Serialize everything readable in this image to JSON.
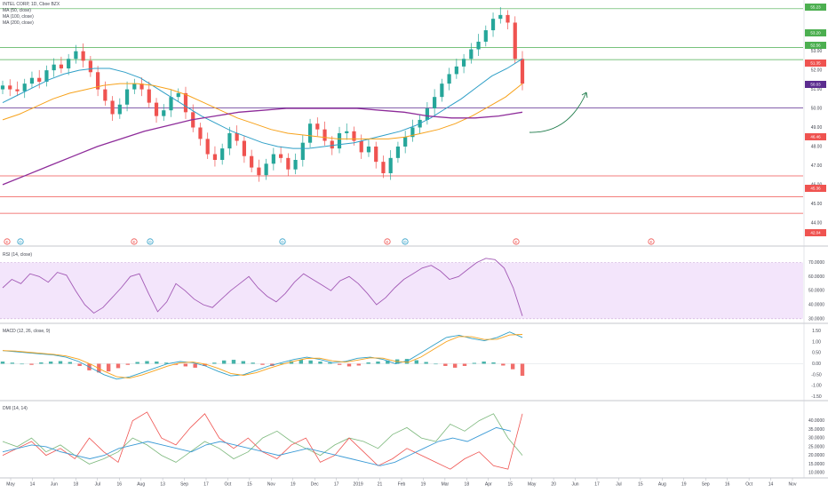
{
  "colors": {
    "up": "#26a69a",
    "down": "#ef5350",
    "ma50": "#2f9fc7",
    "ma100": "#f7a21b",
    "ma200": "#8e2c9a",
    "green_level": "#4caf50",
    "purple_level": "#5b2c8f",
    "red_level": "#ef5350",
    "rsi": "#a259b5",
    "rsi_band": "#f3e5fb",
    "macd": "#2f9fc7",
    "signal": "#f7a21b",
    "dmi_plus": "#7cb87c",
    "dmi_minus": "#ef5350",
    "adx": "#3c9bd6",
    "arrow": "#1e7b4a"
  },
  "legend": {
    "title": "INTEL CORP, 1D, Cboe BZX",
    "ma50": "MA (50, close)",
    "ma100": "MA (100, close)",
    "ma200": "MA (200, close)"
  },
  "chart_data": [
    {
      "type": "candlestick",
      "title": "INTEL CORP, 1D, Cboe BZX",
      "y_ticks": [
        54.0,
        53.0,
        52.0,
        51.0,
        50.0,
        49.0,
        48.0,
        47.0,
        46.0,
        45.0,
        44.0
      ],
      "price_badges": [
        {
          "value": "55.23",
          "color": "#4caf50"
        },
        {
          "value": "53.20",
          "color": "#4caf50"
        },
        {
          "value": "52.56",
          "color": "#4caf50"
        },
        {
          "value": "51.35",
          "color": "#ef5350"
        },
        {
          "value": "50.03",
          "color": "#5b2c8f"
        },
        {
          "value": "46.46",
          "color": "#ef5350"
        },
        {
          "value": "45.36",
          "color": "#ef5350"
        },
        {
          "value": "42.04",
          "color": "#ef5350"
        }
      ],
      "horizontal_levels": [
        {
          "y": 55.23,
          "color": "#4caf50"
        },
        {
          "y": 53.2,
          "color": "#4caf50"
        },
        {
          "y": 52.56,
          "color": "#4caf50"
        },
        {
          "y": 50.03,
          "color": "#5b2c8f"
        },
        {
          "y": 46.46,
          "color": "#ef5350"
        },
        {
          "y": 45.36,
          "color": "#ef5350"
        },
        {
          "y": 44.5,
          "color": "#ef5350"
        }
      ],
      "close_series_sampled": [
        51.2,
        51.0,
        50.9,
        51.3,
        51.6,
        51.4,
        52.0,
        52.3,
        52.1,
        52.6,
        53.0,
        52.5,
        51.9,
        51.0,
        50.4,
        49.7,
        50.2,
        51.0,
        51.3,
        51.0,
        50.3,
        49.6,
        49.9,
        50.6,
        50.8,
        49.8,
        49.0,
        48.4,
        47.6,
        47.3,
        47.9,
        48.7,
        48.3,
        47.5,
        46.9,
        46.5,
        47.1,
        47.6,
        47.4,
        46.8,
        47.3,
        48.2,
        49.2,
        48.9,
        48.3,
        47.9,
        48.7,
        48.8,
        48.3,
        47.7,
        48.0,
        47.2,
        46.6,
        47.4,
        48.0,
        48.5,
        49.0,
        49.4,
        50.0,
        50.6,
        51.3,
        51.8,
        52.2,
        52.6,
        53.1,
        53.5,
        54.1,
        54.7,
        54.9,
        54.5,
        52.6,
        51.3
      ],
      "ma50_sampled": [
        50.3,
        50.7,
        51.1,
        51.5,
        51.8,
        52.0,
        52.1,
        52.1,
        51.9,
        51.6,
        51.1,
        50.6,
        50.1,
        49.6,
        49.2,
        48.8,
        48.5,
        48.2,
        48.0,
        47.9,
        47.9,
        48.0,
        48.1,
        48.2,
        48.4,
        48.6,
        48.8,
        49.1,
        49.5,
        50.0,
        50.5,
        51.1,
        51.7,
        52.1,
        52.6
      ],
      "ma100_sampled": [
        49.4,
        49.7,
        50.1,
        50.5,
        50.8,
        51.0,
        51.2,
        51.3,
        51.3,
        51.2,
        51.0,
        50.7,
        50.3,
        49.9,
        49.5,
        49.2,
        48.9,
        48.7,
        48.6,
        48.5,
        48.4,
        48.4,
        48.4,
        48.4,
        48.5,
        48.7,
        48.9,
        49.2,
        49.6,
        50.1,
        50.6,
        51.3
      ],
      "ma200_sampled": [
        46.0,
        46.5,
        47.0,
        47.5,
        48.0,
        48.4,
        48.8,
        49.1,
        49.4,
        49.6,
        49.8,
        49.9,
        50.0,
        50.0,
        50.0,
        50.0,
        49.9,
        49.8,
        49.6,
        49.5,
        49.5,
        49.6,
        49.8
      ]
    },
    {
      "type": "line",
      "title": "RSI (14, close)",
      "y_ticks": [
        "70.0000",
        "60.0000",
        "50.0000",
        "40.0000",
        "30.0000"
      ],
      "band": [
        30,
        70
      ],
      "rsi_sampled": [
        52,
        58,
        55,
        62,
        60,
        56,
        63,
        61,
        50,
        40,
        34,
        38,
        45,
        52,
        60,
        62,
        48,
        35,
        42,
        55,
        50,
        44,
        40,
        38,
        44,
        50,
        55,
        60,
        52,
        46,
        42,
        48,
        56,
        62,
        58,
        54,
        50,
        57,
        60,
        55,
        48,
        40,
        45,
        52,
        58,
        62,
        66,
        68,
        64,
        58,
        60,
        65,
        70,
        73,
        72,
        66,
        52,
        32
      ]
    },
    {
      "type": "bar+line",
      "title": "MACD (12, 26, close, 9)",
      "y_ticks": [
        "1.50",
        "1.00",
        "0.50",
        "0.00",
        "-0.50",
        "-1.00",
        "-1.50"
      ],
      "histogram_sampled": [
        0.1,
        0.05,
        0.0,
        -0.05,
        0.06,
        0.1,
        0.12,
        0.08,
        -0.1,
        -0.3,
        -0.4,
        -0.35,
        -0.2,
        -0.05,
        0.08,
        0.12,
        0.1,
        0.05,
        -0.05,
        -0.12,
        -0.18,
        -0.1,
        0.05,
        0.15,
        0.18,
        0.12,
        0.05,
        -0.05,
        -0.1,
        0.02,
        0.12,
        0.18,
        0.15,
        0.1,
        0.05,
        -0.05,
        -0.12,
        -0.08,
        0.06,
        0.1,
        0.15,
        0.2,
        0.22,
        0.16,
        0.08,
        0.0,
        -0.1,
        -0.18,
        -0.1,
        0.04,
        0.1,
        0.06,
        -0.08,
        -0.25,
        -0.55
      ],
      "macd_sampled": [
        0.6,
        0.55,
        0.5,
        0.45,
        0.4,
        0.3,
        0.1,
        -0.2,
        -0.5,
        -0.7,
        -0.6,
        -0.4,
        -0.2,
        0.0,
        0.1,
        0.05,
        -0.1,
        -0.35,
        -0.55,
        -0.5,
        -0.3,
        -0.1,
        0.05,
        0.2,
        0.3,
        0.2,
        0.05,
        0.1,
        0.25,
        0.3,
        0.2,
        0.0,
        0.15,
        0.5,
        0.85,
        1.2,
        1.3,
        1.15,
        1.05,
        1.2,
        1.45,
        1.2
      ]
    },
    {
      "type": "line",
      "title": "DMI (14, 14)",
      "y_ticks": [
        "40.0000",
        "35.0000",
        "30.0000",
        "25.0000",
        "20.0000",
        "15.0000",
        "10.0000"
      ],
      "plus_di_sampled": [
        28,
        25,
        30,
        22,
        26,
        20,
        15,
        18,
        22,
        30,
        26,
        20,
        16,
        22,
        28,
        24,
        18,
        22,
        30,
        34,
        28,
        24,
        20,
        26,
        30,
        28,
        24,
        32,
        36,
        30,
        28,
        38,
        34,
        40,
        44,
        30,
        20
      ],
      "minus_di_sampled": [
        20,
        24,
        28,
        20,
        24,
        18,
        30,
        22,
        16,
        40,
        45,
        30,
        26,
        36,
        44,
        30,
        24,
        30,
        22,
        18,
        26,
        30,
        16,
        20,
        30,
        22,
        14,
        18,
        24,
        20,
        16,
        12,
        18,
        22,
        14,
        12,
        44
      ],
      "adx_sampled": [
        22,
        24,
        26,
        25,
        22,
        20,
        18,
        20,
        24,
        26,
        28,
        26,
        24,
        22,
        26,
        28,
        26,
        24,
        22,
        20,
        22,
        24,
        22,
        20,
        18,
        16,
        14,
        16,
        20,
        24,
        28,
        30,
        28,
        32,
        36,
        34
      ]
    }
  ],
  "x_axis": {
    "labels": [
      "May",
      "14",
      "Jun",
      "18",
      "Jul",
      "16",
      "Aug",
      "13",
      "Sep",
      "17",
      "Oct",
      "15",
      "Nov",
      "19",
      "Dec",
      "17",
      "2019",
      "21",
      "Feb",
      "19",
      "Mar",
      "18",
      "Apr",
      "15",
      "May",
      "20",
      "Jun",
      "17",
      "Jul",
      "15",
      "Aug",
      "19",
      "Sep",
      "16",
      "Oct",
      "14",
      "Nov"
    ]
  },
  "event_markers": [
    "E",
    "D",
    "E",
    "D",
    "D",
    "E",
    "D",
    "E",
    "E"
  ]
}
